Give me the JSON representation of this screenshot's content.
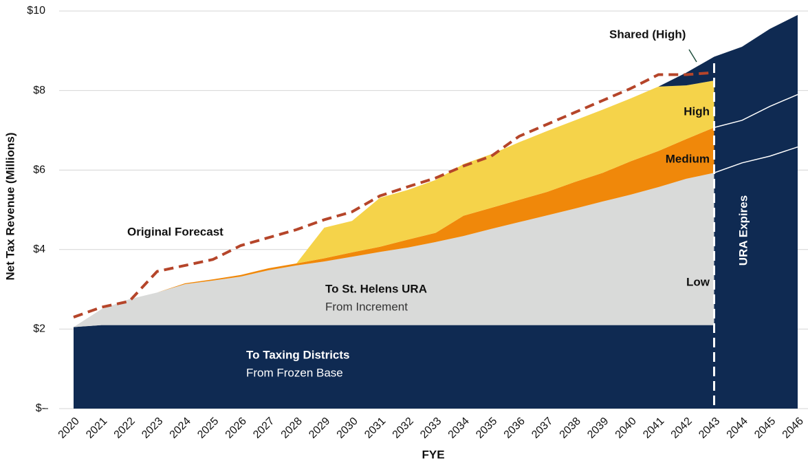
{
  "chart_data": {
    "type": "stacked_area",
    "y_label": "Net Tax Revenue (Millions)",
    "x_label": "FYE",
    "categories": [
      "2020",
      "2021",
      "2022",
      "2023",
      "2024",
      "2025",
      "2026",
      "2027",
      "2028",
      "2029",
      "2030",
      "2031",
      "2032",
      "2033",
      "2034",
      "2035",
      "2036",
      "2037",
      "2038",
      "2039",
      "2040",
      "2041",
      "2042",
      "2043",
      "2044",
      "2045",
      "2046"
    ],
    "ylim": [
      0,
      10
    ],
    "yticks": [
      {
        "value": 0,
        "label": "$-"
      },
      {
        "value": 2,
        "label": "$2"
      },
      {
        "value": 4,
        "label": "$4"
      },
      {
        "value": 6,
        "label": "$6"
      },
      {
        "value": 8,
        "label": "$8"
      },
      {
        "value": 10,
        "label": "$10"
      }
    ],
    "grid": true,
    "expiry": "2043",
    "expiry_label": "URA Expires",
    "series": [
      {
        "name": "To Taxing Districts",
        "color": "#0f2a52",
        "values": [
          2.05,
          2.1,
          2.1,
          2.1,
          2.1,
          2.1,
          2.1,
          2.1,
          2.1,
          2.1,
          2.1,
          2.1,
          2.1,
          2.1,
          2.1,
          2.1,
          2.1,
          2.1,
          2.1,
          2.1,
          2.1,
          2.1,
          2.1,
          2.1,
          2.1,
          2.1,
          2.1
        ]
      },
      {
        "name": "Low",
        "color": "#d9dad9",
        "values": [
          0,
          0.4,
          0.65,
          0.82,
          1.03,
          1.12,
          1.22,
          1.38,
          1.5,
          1.6,
          1.72,
          1.84,
          1.95,
          2.09,
          2.24,
          2.42,
          2.59,
          2.76,
          2.93,
          3.11,
          3.28,
          3.47,
          3.68,
          3.83,
          4.08,
          4.25,
          4.48
        ]
      },
      {
        "name": "Medium",
        "color": "#f0880a",
        "values": [
          0,
          0,
          0,
          0,
          0.02,
          0.03,
          0.04,
          0.05,
          0.05,
          0.08,
          0.11,
          0.13,
          0.2,
          0.23,
          0.51,
          0.53,
          0.56,
          0.59,
          0.67,
          0.72,
          0.84,
          0.91,
          1.0,
          1.14,
          1.07,
          1.25,
          1.32
        ]
      },
      {
        "name": "High",
        "color": "#f5d34a",
        "values": [
          0,
          0,
          0,
          0,
          0,
          0,
          0,
          0,
          0,
          0.77,
          0.79,
          1.23,
          1.25,
          1.33,
          1.3,
          1.35,
          1.45,
          1.53,
          1.55,
          1.59,
          1.58,
          1.62,
          1.35,
          1.18,
          0,
          0,
          0
        ]
      },
      {
        "name": "Shared (High)",
        "color": "#0f2a52",
        "values": [
          0,
          0,
          0,
          0,
          0,
          0,
          0,
          0,
          0,
          0,
          0,
          0,
          0,
          0,
          0,
          0,
          0,
          0,
          0,
          0,
          0,
          0,
          0.32,
          0.6,
          1.85,
          1.95,
          2.0
        ]
      }
    ],
    "forecast": {
      "name": "Original Forecast",
      "color": "#b5452a",
      "values": [
        2.3,
        2.55,
        2.7,
        3.45,
        3.6,
        3.75,
        4.1,
        4.3,
        4.5,
        4.75,
        4.95,
        5.35,
        5.58,
        5.8,
        6.1,
        6.35,
        6.85,
        7.15,
        7.45,
        7.75,
        8.05,
        8.4,
        8.4,
        8.45,
        null,
        null,
        null
      ]
    },
    "annotations": [
      "To St. Helens URA",
      "From Increment",
      "From Frozen Base"
    ]
  }
}
